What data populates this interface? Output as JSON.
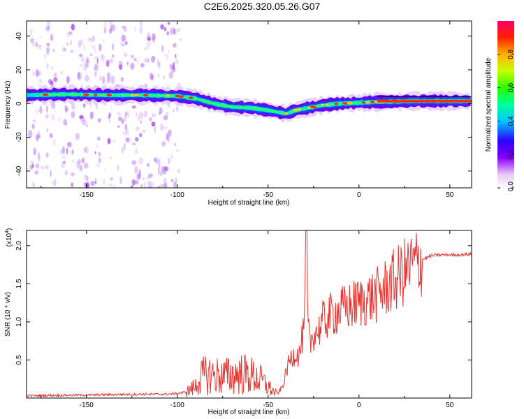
{
  "title": "C2E6.2025.320.05.26.G07",
  "chart_data": [
    {
      "type": "heatmap",
      "title": "C2E6.2025.320.05.26.G07",
      "xlabel": "Height of straight line (km)",
      "ylabel": "Frequency (Hz)",
      "xlim": [
        -183,
        62
      ],
      "ylim": [
        -50,
        49
      ],
      "xticks": [
        -150,
        -100,
        -50,
        0,
        50
      ],
      "xtick_labels": [
        "-150",
        "-100",
        "-50",
        "0",
        "50"
      ],
      "yticks": [
        -40,
        -20,
        0,
        20,
        40
      ],
      "ytick_labels": [
        "-40",
        "-20",
        "0",
        "20",
        "40"
      ],
      "colorbar": {
        "label": "Normalized spectral amplitude",
        "range": [
          0,
          1
        ],
        "ticks": [
          0.0,
          0.2,
          0.4,
          0.6,
          0.8
        ],
        "tick_labels": [
          "0.0",
          "0.2",
          "0.4",
          "0.6",
          "0.8"
        ]
      },
      "ridge": {
        "description_values": "dominant frequency (Hz) vs height (km)",
        "x": [
          -183,
          -160,
          -140,
          -120,
          -100,
          -90,
          -80,
          -70,
          -60,
          -50,
          -45,
          -40,
          -35,
          -30,
          -20,
          -10,
          0,
          10,
          20,
          30,
          40,
          50,
          62
        ],
        "y": [
          5,
          5.5,
          5,
          5,
          4.5,
          3,
          0,
          -2,
          -2.5,
          -4,
          -5,
          -6,
          -4,
          -3,
          -1,
          0,
          0.5,
          1,
          1.2,
          1.5,
          1.5,
          1.5,
          1.5
        ]
      }
    },
    {
      "type": "line",
      "xlabel": "Height of straight line (km)",
      "ylabel": "SNR (10 * v/v)",
      "scale_label": "(x10",
      "scale_exp": "4",
      "scale_suffix": ")",
      "xlim": [
        -183,
        62
      ],
      "ylim": [
        0,
        2.2
      ],
      "xticks": [
        -150,
        -100,
        -50,
        0,
        50
      ],
      "xtick_labels": [
        "-150",
        "-100",
        "-50",
        "0",
        "50"
      ],
      "yticks": [
        0.5,
        1.0,
        1.5,
        2.0
      ],
      "ytick_labels": [
        "0.5",
        "1.0",
        "1.5",
        "2.0"
      ],
      "color": "#e8312e",
      "series": [
        {
          "name": "SNR",
          "x": [
            -183,
            -150,
            -120,
            -105,
            -100,
            -95,
            -90,
            -88,
            -85,
            -80,
            -75,
            -70,
            -65,
            -60,
            -55,
            -50,
            -48,
            -45,
            -42,
            -40,
            -38,
            -35,
            -33,
            -31,
            -30,
            -29,
            -28,
            -27,
            -25,
            -22,
            -20,
            -15,
            -10,
            -5,
            0,
            5,
            10,
            15,
            20,
            25,
            30,
            35,
            40,
            45,
            50,
            55,
            62
          ],
          "y": [
            0.03,
            0.04,
            0.05,
            0.05,
            0.06,
            0.08,
            0.15,
            0.25,
            0.3,
            0.3,
            0.28,
            0.3,
            0.32,
            0.3,
            0.25,
            0.15,
            0.1,
            0.05,
            0.15,
            0.35,
            0.5,
            0.6,
            0.55,
            0.8,
            0.9,
            2.2,
            0.9,
            0.7,
            0.85,
            0.9,
            1.0,
            1.1,
            1.15,
            1.2,
            1.25,
            1.3,
            1.35,
            1.45,
            1.55,
            1.65,
            1.75,
            1.82,
            1.87,
            1.88,
            1.88,
            1.88,
            1.89
          ]
        }
      ]
    }
  ]
}
